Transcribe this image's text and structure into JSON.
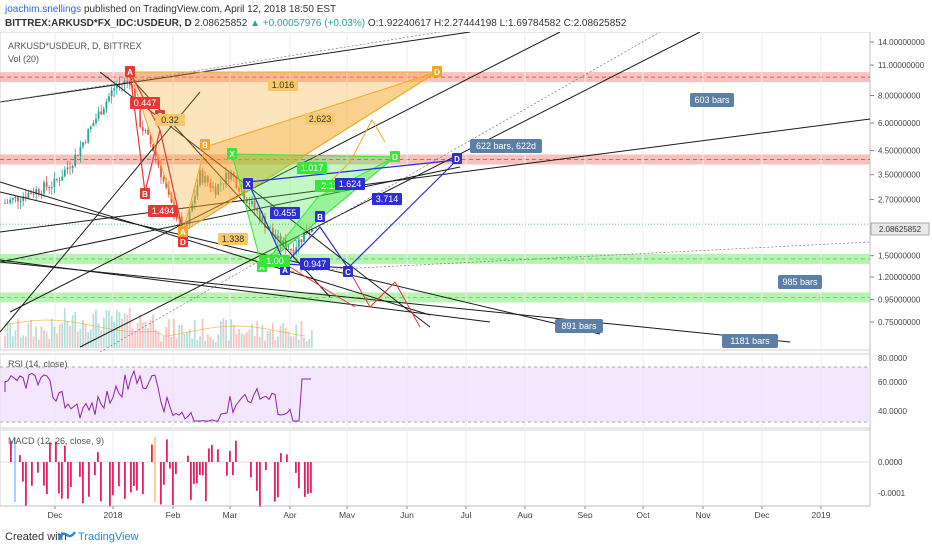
{
  "header": {
    "author": "joachim.snellings",
    "published": "published on TradingView.com, April 12, 2018 18:50 EST",
    "symbol_line": "BITTREX:ARKUSD*FX_IDC:USDEUR, D",
    "last": "2.08625852",
    "change": "▲ +0.00057976 (+0.03%)",
    "ohlc": "O:1.92240617 H:2.27444198 L:1.69784582 C:2.08625852"
  },
  "legend": {
    "title": "ARKUSD*USDEUR, D, BITTREX",
    "vol": "Vol (20)",
    "rsi": "RSI (14, close)",
    "macd": "MACD (12, 26, close, 9)"
  },
  "colors": {
    "up": "#26a69a",
    "down": "#ef5350",
    "black": "#1a1a1a",
    "orange": "#f5a623",
    "green": "#39e639",
    "blue": "#2d2dd9",
    "red": "#e53935",
    "label_box": "#5b7fa6",
    "rsi_fill": "#f1e0fb",
    "macd_hist": "#e91e63",
    "zone_red": "#f4b3ae",
    "zone_green": "#a8f0a0"
  },
  "chart_data": {
    "type": "candlestick",
    "price_scale": "log",
    "y_ticks": [
      "14.00000000",
      "11.00000000",
      "8.00000000",
      "6.00000000",
      "4.50000000",
      "3.50000000",
      "2.70000000",
      "1.50000000",
      "1.20000000",
      "0.95000000",
      "0.75000000"
    ],
    "last_price": "2.08625852",
    "x_ticks": [
      "Dec",
      "2018",
      "Feb",
      "Mar",
      "Apr",
      "May",
      "Jun",
      "Jul",
      "Aug",
      "Sep",
      "Oct",
      "Nov",
      "Dec",
      "2019"
    ],
    "bar_count_labels": [
      "603 bars",
      "622 bars, 622d",
      "985 bars",
      "891 bars",
      "1181 bars"
    ],
    "pattern_ratios": [
      "1.016",
      "2.623",
      "0.447",
      "1.494",
      "1.338",
      "1.017",
      "2.13",
      "1.624",
      "0.455",
      "3.714",
      "0.947",
      "1.00",
      "0.32"
    ],
    "pattern_points": [
      "A",
      "B",
      "C",
      "D",
      "X"
    ],
    "rsi_ticks": [
      "80.0000",
      "60.0000",
      "40.0000"
    ],
    "macd_ticks": [
      "0.0000",
      "-0.0001"
    ],
    "zones": [
      {
        "color": "red",
        "price": 9.7
      },
      {
        "color": "red",
        "price": 4.1
      },
      {
        "color": "green",
        "price": 1.45
      },
      {
        "color": "green",
        "price": 0.97
      }
    ]
  },
  "footer": {
    "created": "Created with",
    "brand": "TradingView"
  }
}
